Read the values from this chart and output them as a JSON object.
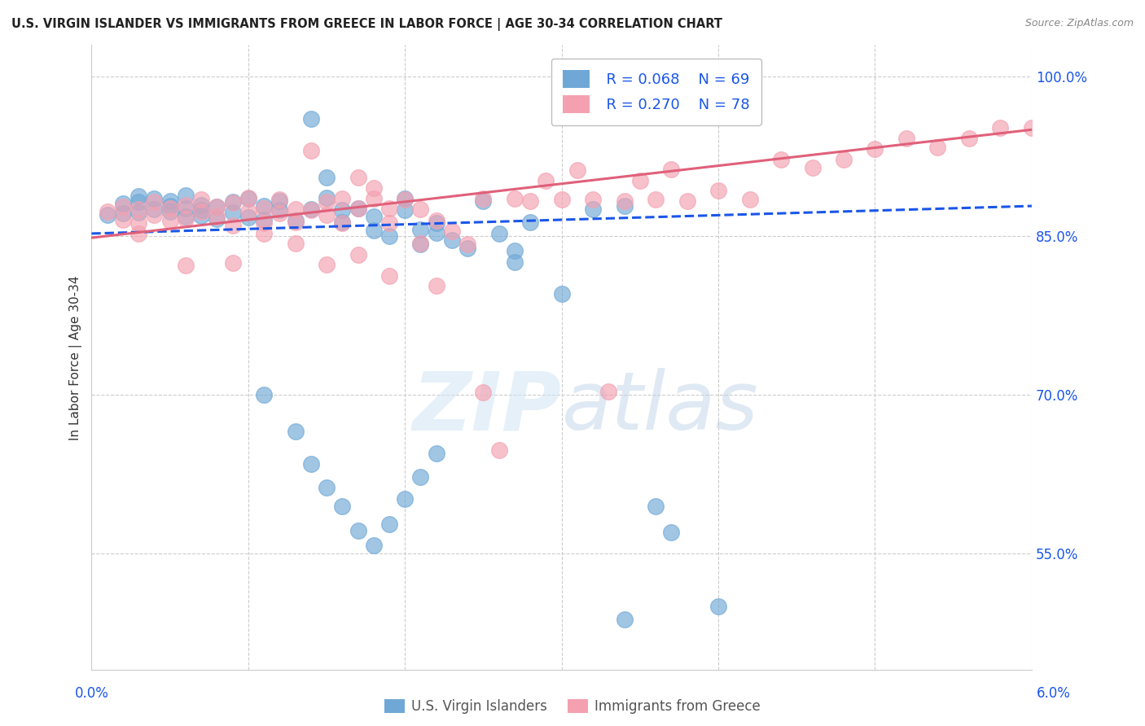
{
  "title": "U.S. VIRGIN ISLANDER VS IMMIGRANTS FROM GREECE IN LABOR FORCE | AGE 30-34 CORRELATION CHART",
  "source": "Source: ZipAtlas.com",
  "ylabel": "In Labor Force | Age 30-34",
  "xmin": 0.0,
  "xmax": 0.06,
  "ymin": 0.44,
  "ymax": 1.03,
  "legend_r1": "R = 0.068",
  "legend_n1": "N = 69",
  "legend_r2": "R = 0.270",
  "legend_n2": "N = 78",
  "blue_color": "#6fa8d6",
  "pink_color": "#f4a0b0",
  "trend_blue": "#1a56e8",
  "trend_pink": "#e0607a",
  "label_color": "#1a56e8",
  "watermark_color": "#d0e4f5",
  "blue_scatter": [
    [
      0.001,
      0.87
    ],
    [
      0.002,
      0.871
    ],
    [
      0.002,
      0.88
    ],
    [
      0.003,
      0.872
    ],
    [
      0.003,
      0.882
    ],
    [
      0.003,
      0.887
    ],
    [
      0.004,
      0.875
    ],
    [
      0.004,
      0.885
    ],
    [
      0.005,
      0.873
    ],
    [
      0.005,
      0.878
    ],
    [
      0.005,
      0.883
    ],
    [
      0.006,
      0.876
    ],
    [
      0.006,
      0.868
    ],
    [
      0.006,
      0.888
    ],
    [
      0.007,
      0.874
    ],
    [
      0.007,
      0.869
    ],
    [
      0.007,
      0.879
    ],
    [
      0.008,
      0.877
    ],
    [
      0.008,
      0.866
    ],
    [
      0.009,
      0.882
    ],
    [
      0.009,
      0.872
    ],
    [
      0.01,
      0.867
    ],
    [
      0.01,
      0.885
    ],
    [
      0.011,
      0.878
    ],
    [
      0.011,
      0.865
    ],
    [
      0.012,
      0.883
    ],
    [
      0.012,
      0.874
    ],
    [
      0.013,
      0.864
    ],
    [
      0.014,
      0.96
    ],
    [
      0.014,
      0.875
    ],
    [
      0.015,
      0.886
    ],
    [
      0.015,
      0.905
    ],
    [
      0.016,
      0.874
    ],
    [
      0.016,
      0.863
    ],
    [
      0.017,
      0.876
    ],
    [
      0.018,
      0.855
    ],
    [
      0.018,
      0.868
    ],
    [
      0.019,
      0.85
    ],
    [
      0.02,
      0.885
    ],
    [
      0.02,
      0.874
    ],
    [
      0.021,
      0.856
    ],
    [
      0.021,
      0.842
    ],
    [
      0.022,
      0.853
    ],
    [
      0.022,
      0.862
    ],
    [
      0.023,
      0.846
    ],
    [
      0.024,
      0.838
    ],
    [
      0.025,
      0.883
    ],
    [
      0.026,
      0.852
    ],
    [
      0.027,
      0.836
    ],
    [
      0.027,
      0.825
    ],
    [
      0.028,
      0.863
    ],
    [
      0.03,
      0.795
    ],
    [
      0.032,
      0.875
    ],
    [
      0.034,
      0.878
    ],
    [
      0.011,
      0.7
    ],
    [
      0.013,
      0.665
    ],
    [
      0.014,
      0.635
    ],
    [
      0.015,
      0.612
    ],
    [
      0.016,
      0.595
    ],
    [
      0.017,
      0.572
    ],
    [
      0.018,
      0.558
    ],
    [
      0.019,
      0.578
    ],
    [
      0.02,
      0.602
    ],
    [
      0.021,
      0.622
    ],
    [
      0.022,
      0.645
    ],
    [
      0.034,
      0.488
    ],
    [
      0.036,
      0.595
    ],
    [
      0.037,
      0.57
    ],
    [
      0.04,
      0.5
    ]
  ],
  "pink_scatter": [
    [
      0.001,
      0.873
    ],
    [
      0.002,
      0.877
    ],
    [
      0.002,
      0.865
    ],
    [
      0.003,
      0.875
    ],
    [
      0.003,
      0.862
    ],
    [
      0.004,
      0.882
    ],
    [
      0.004,
      0.87
    ],
    [
      0.005,
      0.876
    ],
    [
      0.005,
      0.864
    ],
    [
      0.006,
      0.879
    ],
    [
      0.006,
      0.866
    ],
    [
      0.007,
      0.873
    ],
    [
      0.007,
      0.884
    ],
    [
      0.008,
      0.877
    ],
    [
      0.008,
      0.868
    ],
    [
      0.009,
      0.881
    ],
    [
      0.009,
      0.86
    ],
    [
      0.01,
      0.886
    ],
    [
      0.01,
      0.873
    ],
    [
      0.011,
      0.876
    ],
    [
      0.011,
      0.862
    ],
    [
      0.012,
      0.884
    ],
    [
      0.012,
      0.871
    ],
    [
      0.013,
      0.863
    ],
    [
      0.013,
      0.875
    ],
    [
      0.014,
      0.874
    ],
    [
      0.014,
      0.93
    ],
    [
      0.015,
      0.882
    ],
    [
      0.015,
      0.87
    ],
    [
      0.016,
      0.862
    ],
    [
      0.016,
      0.885
    ],
    [
      0.017,
      0.876
    ],
    [
      0.017,
      0.905
    ],
    [
      0.018,
      0.885
    ],
    [
      0.018,
      0.895
    ],
    [
      0.019,
      0.876
    ],
    [
      0.019,
      0.862
    ],
    [
      0.02,
      0.884
    ],
    [
      0.021,
      0.875
    ],
    [
      0.021,
      0.843
    ],
    [
      0.022,
      0.864
    ],
    [
      0.022,
      0.803
    ],
    [
      0.023,
      0.854
    ],
    [
      0.024,
      0.842
    ],
    [
      0.025,
      0.885
    ],
    [
      0.025,
      0.702
    ],
    [
      0.026,
      0.648
    ],
    [
      0.027,
      0.885
    ],
    [
      0.028,
      0.883
    ],
    [
      0.029,
      0.902
    ],
    [
      0.03,
      0.884
    ],
    [
      0.031,
      0.912
    ],
    [
      0.032,
      0.884
    ],
    [
      0.033,
      0.703
    ],
    [
      0.034,
      0.883
    ],
    [
      0.035,
      0.902
    ],
    [
      0.036,
      0.884
    ],
    [
      0.037,
      0.913
    ],
    [
      0.038,
      0.883
    ],
    [
      0.04,
      0.893
    ],
    [
      0.042,
      0.884
    ],
    [
      0.044,
      0.922
    ],
    [
      0.046,
      0.914
    ],
    [
      0.048,
      0.922
    ],
    [
      0.05,
      0.932
    ],
    [
      0.052,
      0.942
    ],
    [
      0.054,
      0.933
    ],
    [
      0.056,
      0.942
    ],
    [
      0.058,
      0.952
    ],
    [
      0.06,
      0.952
    ],
    [
      0.003,
      0.852
    ],
    [
      0.006,
      0.822
    ],
    [
      0.009,
      0.824
    ],
    [
      0.011,
      0.852
    ],
    [
      0.013,
      0.843
    ],
    [
      0.015,
      0.823
    ],
    [
      0.017,
      0.832
    ],
    [
      0.019,
      0.812
    ]
  ],
  "blue_trendline": [
    [
      0.0,
      0.852
    ],
    [
      0.06,
      0.878
    ]
  ],
  "pink_trendline": [
    [
      0.0,
      0.848
    ],
    [
      0.06,
      0.95
    ]
  ],
  "ytick_vals": [
    0.55,
    0.7,
    0.85,
    1.0
  ],
  "ytick_labels": [
    "55.0%",
    "70.0%",
    "85.0%",
    "100.0%"
  ],
  "xtick_vals": [
    0.0,
    0.01,
    0.02,
    0.03,
    0.04,
    0.05,
    0.06
  ]
}
